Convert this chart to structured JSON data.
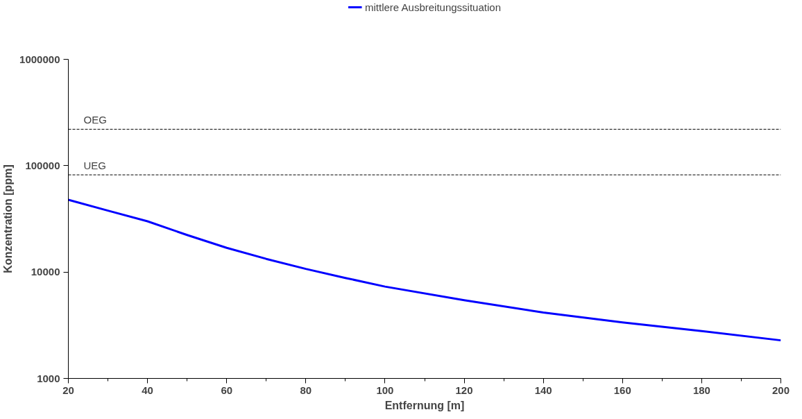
{
  "chart_data": {
    "type": "line",
    "xlabel": "Entfernung [m]",
    "ylabel": "Konzentration [ppm]",
    "x": [
      20,
      30,
      40,
      50,
      60,
      70,
      80,
      90,
      100,
      120,
      140,
      160,
      180,
      200
    ],
    "series": [
      {
        "name": "mittlere Ausbreitungssituation",
        "color": "#0000ff",
        "values": [
          47800,
          37800,
          30000,
          22300,
          16900,
          13300,
          10700,
          8800,
          7300,
          5430,
          4170,
          3360,
          2790,
          2280
        ]
      }
    ],
    "xlim": [
      20,
      200
    ],
    "xticks": [
      20,
      40,
      60,
      80,
      100,
      120,
      140,
      160,
      180,
      200
    ],
    "ylim": [
      1000,
      1000000
    ],
    "yticks": [
      1000,
      10000,
      100000,
      1000000
    ],
    "log": "y",
    "grid": false,
    "legend": "top",
    "marker": "none",
    "line_style": "solid",
    "ref_lines": [
      {
        "axis": "y",
        "value": 220000,
        "label": "OEG",
        "color": "#000000",
        "line_style": "dashed"
      },
      {
        "axis": "y",
        "value": 82000,
        "label": "UEG",
        "color": "#000000",
        "line_style": "dashed"
      }
    ]
  }
}
